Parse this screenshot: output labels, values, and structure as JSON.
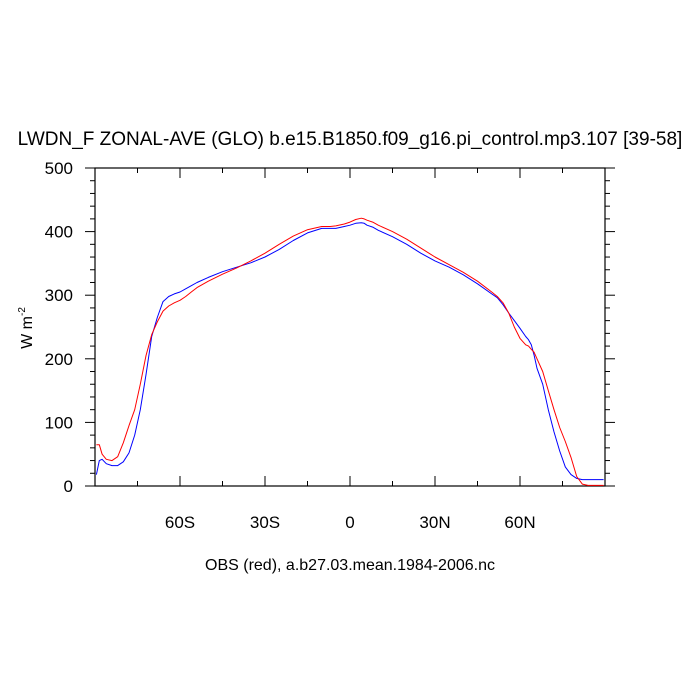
{
  "chart_data": {
    "type": "line",
    "title": "LWDN_F ZONAL-AVE (GLO) b.e15.B1850.f09_g16.pi_control.mp3.107 [39-58]",
    "ylabel_main": "W m",
    "ylabel_sup": "-2",
    "xlabel": "OBS (red), a.b27.03.mean.1984-2006.nc",
    "xlim": [
      -90,
      90
    ],
    "ylim": [
      0,
      500
    ],
    "x_ticks": [
      {
        "value": -60,
        "label": "60S"
      },
      {
        "value": -30,
        "label": "30S"
      },
      {
        "value": 0,
        "label": "0"
      },
      {
        "value": 30,
        "label": "30N"
      },
      {
        "value": 60,
        "label": "60N"
      }
    ],
    "y_ticks": [
      {
        "value": 0,
        "label": "0"
      },
      {
        "value": 100,
        "label": "100"
      },
      {
        "value": 200,
        "label": "200"
      },
      {
        "value": 300,
        "label": "300"
      },
      {
        "value": 400,
        "label": "400"
      },
      {
        "value": 500,
        "label": "500"
      }
    ],
    "series": [
      {
        "color": "#0000ff",
        "x": [
          -89.5,
          -88.5,
          -87.5,
          -86,
          -84,
          -82,
          -80,
          -78,
          -76,
          -74,
          -72,
          -70,
          -68,
          -66,
          -64,
          -62,
          -60,
          -58,
          -56,
          -54,
          -50,
          -45,
          -40,
          -35,
          -30,
          -25,
          -20,
          -15,
          -10,
          -7,
          -5,
          -2,
          0,
          2,
          4,
          5,
          6,
          8,
          10,
          15,
          20,
          25,
          30,
          35,
          40,
          45,
          50,
          52,
          54,
          56,
          58,
          60,
          62,
          63,
          64,
          65,
          66,
          68,
          70,
          72,
          74,
          76,
          78,
          80,
          82,
          84,
          86,
          88,
          89.5
        ],
        "y": [
          18,
          40,
          42,
          35,
          32,
          32,
          38,
          52,
          80,
          120,
          175,
          235,
          265,
          290,
          298,
          302,
          305,
          310,
          315,
          320,
          328,
          337,
          344,
          351,
          360,
          372,
          386,
          398,
          405,
          405,
          405,
          408,
          410,
          413,
          414,
          413,
          410,
          407,
          402,
          392,
          380,
          366,
          354,
          344,
          332,
          318,
          302,
          296,
          285,
          272,
          260,
          248,
          235,
          230,
          222,
          205,
          185,
          160,
          120,
          85,
          55,
          30,
          18,
          12,
          10,
          10,
          10,
          10,
          10
        ]
      },
      {
        "color": "#ff0000",
        "x": [
          -89.5,
          -88.5,
          -87.5,
          -86,
          -84,
          -82,
          -80,
          -78,
          -76,
          -74,
          -72,
          -70,
          -68,
          -66,
          -64,
          -62,
          -60,
          -58,
          -56,
          -54,
          -50,
          -45,
          -40,
          -35,
          -30,
          -25,
          -20,
          -15,
          -10,
          -7,
          -5,
          -2,
          0,
          2,
          4,
          5,
          6,
          8,
          10,
          15,
          20,
          25,
          30,
          35,
          40,
          45,
          50,
          52,
          54,
          56,
          58,
          60,
          62,
          63,
          64,
          65,
          66,
          68,
          70,
          72,
          74,
          76,
          78,
          80,
          82,
          84,
          86,
          88,
          89.5
        ],
        "y": [
          65,
          65,
          50,
          42,
          40,
          46,
          68,
          95,
          120,
          160,
          205,
          238,
          258,
          275,
          283,
          288,
          292,
          298,
          305,
          312,
          322,
          333,
          343,
          354,
          366,
          380,
          393,
          403,
          408,
          408,
          409,
          412,
          415,
          419,
          421,
          420,
          418,
          415,
          410,
          400,
          388,
          374,
          360,
          348,
          336,
          322,
          305,
          298,
          288,
          272,
          250,
          232,
          222,
          220,
          215,
          210,
          200,
          180,
          150,
          120,
          92,
          70,
          45,
          15,
          3,
          1,
          1,
          1,
          1
        ]
      }
    ]
  }
}
